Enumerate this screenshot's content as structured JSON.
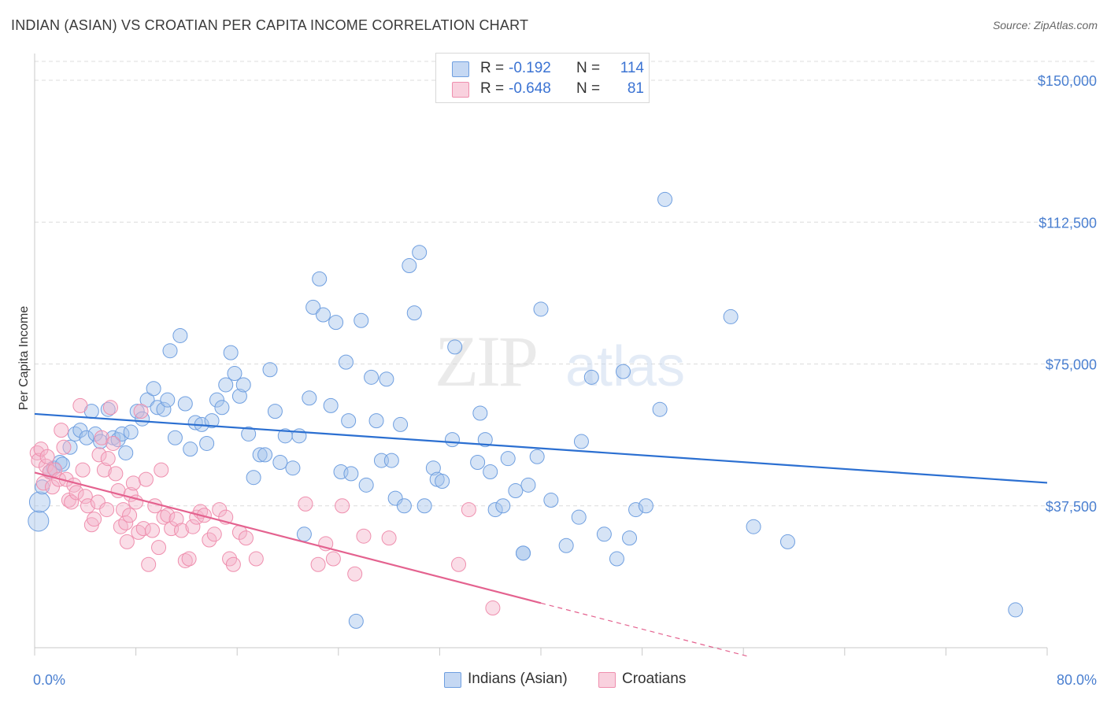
{
  "title": "INDIAN (ASIAN) VS CROATIAN PER CAPITA INCOME CORRELATION CHART",
  "source": "Source: ZipAtlas.com",
  "legend": {
    "rows": [
      {
        "r_label": "R =",
        "r_value": "-0.192",
        "n_label": "N =",
        "n_value": "114",
        "color": "#6f9fe0"
      },
      {
        "r_label": "R =",
        "r_value": "-0.648",
        "n_label": "N =",
        "n_value": "81",
        "color": "#ef8fae"
      }
    ]
  },
  "bottom_legend": [
    {
      "label": "Indians (Asian)",
      "color": "#6f9fe0"
    },
    {
      "label": "Croatians",
      "color": "#ef8fae"
    }
  ],
  "chart_data": {
    "type": "scatter",
    "title": "INDIAN (ASIAN) VS CROATIAN PER CAPITA INCOME CORRELATION CHART",
    "xlabel": "",
    "ylabel": "Per Capita Income",
    "xlim": [
      0,
      80
    ],
    "ylim": [
      0,
      155000
    ],
    "x_tick_labels": [
      "0.0%",
      "80.0%"
    ],
    "y_ticks": [
      37500,
      75000,
      112500,
      150000
    ],
    "y_tick_labels": [
      "$37,500",
      "$75,000",
      "$112,500",
      "$150,000"
    ],
    "grid": true,
    "legend_position": "top-center",
    "watermark": "ZIPatlas",
    "series": [
      {
        "name": "Indians (Asian)",
        "color": "#6f9fe0",
        "trend": {
          "x": [
            0,
            80
          ],
          "y": [
            61800,
            43600
          ]
        },
        "points": [
          [
            0.3,
            33500
          ],
          [
            0.4,
            38500
          ],
          [
            0.6,
            42500
          ],
          [
            1.2,
            46500
          ],
          [
            1.5,
            47500
          ],
          [
            2.0,
            49000
          ],
          [
            2.2,
            48500
          ],
          [
            2.8,
            53000
          ],
          [
            3.2,
            56500
          ],
          [
            3.6,
            57500
          ],
          [
            4.1,
            55500
          ],
          [
            4.5,
            62500
          ],
          [
            4.8,
            56500
          ],
          [
            5.2,
            54500
          ],
          [
            5.8,
            63000
          ],
          [
            6.2,
            55500
          ],
          [
            6.6,
            55000
          ],
          [
            6.9,
            56500
          ],
          [
            7.2,
            51500
          ],
          [
            7.6,
            57000
          ],
          [
            8.1,
            62500
          ],
          [
            8.5,
            60500
          ],
          [
            8.9,
            65500
          ],
          [
            9.4,
            68500
          ],
          [
            9.7,
            63500
          ],
          [
            10.2,
            63000
          ],
          [
            10.5,
            65500
          ],
          [
            10.7,
            78500
          ],
          [
            11.1,
            55500
          ],
          [
            11.5,
            82500
          ],
          [
            11.9,
            64500
          ],
          [
            12.3,
            52500
          ],
          [
            12.7,
            59500
          ],
          [
            13.2,
            59000
          ],
          [
            13.6,
            54000
          ],
          [
            14.0,
            60000
          ],
          [
            14.4,
            65500
          ],
          [
            14.8,
            63500
          ],
          [
            15.1,
            69500
          ],
          [
            15.5,
            78000
          ],
          [
            15.8,
            72500
          ],
          [
            16.2,
            66500
          ],
          [
            16.5,
            69500
          ],
          [
            16.9,
            56500
          ],
          [
            17.3,
            45000
          ],
          [
            17.8,
            51000
          ],
          [
            18.2,
            51000
          ],
          [
            18.6,
            73500
          ],
          [
            19.0,
            62500
          ],
          [
            19.4,
            49000
          ],
          [
            19.8,
            56000
          ],
          [
            20.4,
            47500
          ],
          [
            20.9,
            56000
          ],
          [
            21.3,
            30000
          ],
          [
            21.7,
            66000
          ],
          [
            22.0,
            90000
          ],
          [
            22.5,
            97500
          ],
          [
            22.8,
            88000
          ],
          [
            23.4,
            64000
          ],
          [
            23.8,
            86000
          ],
          [
            24.2,
            46500
          ],
          [
            24.6,
            75500
          ],
          [
            24.8,
            60000
          ],
          [
            25.0,
            46000
          ],
          [
            25.4,
            7000
          ],
          [
            25.8,
            86500
          ],
          [
            26.2,
            43000
          ],
          [
            26.6,
            71500
          ],
          [
            27.0,
            60000
          ],
          [
            27.4,
            49500
          ],
          [
            27.8,
            71000
          ],
          [
            28.2,
            49500
          ],
          [
            28.5,
            39500
          ],
          [
            28.9,
            59000
          ],
          [
            29.2,
            37500
          ],
          [
            29.6,
            101000
          ],
          [
            30.0,
            88500
          ],
          [
            30.4,
            104500
          ],
          [
            30.8,
            37500
          ],
          [
            31.5,
            47500
          ],
          [
            31.8,
            44500
          ],
          [
            32.2,
            44000
          ],
          [
            33.0,
            55000
          ],
          [
            33.2,
            79500
          ],
          [
            35.0,
            49000
          ],
          [
            35.2,
            62000
          ],
          [
            35.6,
            55000
          ],
          [
            36.0,
            46500
          ],
          [
            36.4,
            36500
          ],
          [
            37.0,
            37500
          ],
          [
            37.4,
            50000
          ],
          [
            38.0,
            41500
          ],
          [
            38.6,
            25000
          ],
          [
            39.0,
            43000
          ],
          [
            39.7,
            50500
          ],
          [
            40.0,
            89500
          ],
          [
            40.8,
            39000
          ],
          [
            42.0,
            27000
          ],
          [
            43.0,
            34500
          ],
          [
            43.2,
            54500
          ],
          [
            44.0,
            71500
          ],
          [
            45.0,
            30000
          ],
          [
            46.0,
            23500
          ],
          [
            46.5,
            73000
          ],
          [
            47.0,
            29000
          ],
          [
            47.5,
            36500
          ],
          [
            48.3,
            37500
          ],
          [
            49.4,
            63000
          ],
          [
            49.8,
            118500
          ],
          [
            55.0,
            87500
          ],
          [
            56.8,
            32000
          ],
          [
            59.5,
            28000
          ],
          [
            77.5,
            10000
          ],
          [
            38.6,
            25000
          ]
        ]
      },
      {
        "name": "Croatians",
        "color": "#ef8fae",
        "trend": {
          "x": [
            0,
            40
          ],
          "y": [
            46300,
            11800
          ]
        },
        "trend_dashed": {
          "x": [
            40,
            56.5
          ],
          "y": [
            11800,
            -2400
          ]
        },
        "points": [
          [
            0.2,
            51500
          ],
          [
            0.3,
            49500
          ],
          [
            0.5,
            52500
          ],
          [
            0.7,
            43500
          ],
          [
            0.9,
            48000
          ],
          [
            1.0,
            50500
          ],
          [
            1.2,
            46500
          ],
          [
            1.4,
            42500
          ],
          [
            1.6,
            47000
          ],
          [
            1.9,
            44500
          ],
          [
            2.1,
            57500
          ],
          [
            2.3,
            53000
          ],
          [
            2.5,
            44500
          ],
          [
            2.7,
            39000
          ],
          [
            2.9,
            38500
          ],
          [
            3.1,
            43000
          ],
          [
            3.3,
            41000
          ],
          [
            3.6,
            64000
          ],
          [
            3.8,
            47000
          ],
          [
            4.0,
            40000
          ],
          [
            4.2,
            37500
          ],
          [
            4.5,
            32500
          ],
          [
            4.7,
            34000
          ],
          [
            5.0,
            38500
          ],
          [
            5.1,
            51000
          ],
          [
            5.3,
            55500
          ],
          [
            5.5,
            47000
          ],
          [
            5.7,
            36500
          ],
          [
            5.8,
            50000
          ],
          [
            6.0,
            63500
          ],
          [
            6.2,
            54000
          ],
          [
            6.4,
            46000
          ],
          [
            6.6,
            41500
          ],
          [
            6.8,
            32000
          ],
          [
            7.0,
            36500
          ],
          [
            7.2,
            33000
          ],
          [
            7.3,
            28000
          ],
          [
            7.5,
            35000
          ],
          [
            7.6,
            40500
          ],
          [
            7.8,
            43500
          ],
          [
            8.0,
            38500
          ],
          [
            8.2,
            30500
          ],
          [
            8.4,
            62500
          ],
          [
            8.6,
            31500
          ],
          [
            8.8,
            44500
          ],
          [
            9.0,
            22000
          ],
          [
            9.3,
            31000
          ],
          [
            9.5,
            37500
          ],
          [
            9.8,
            26500
          ],
          [
            10.0,
            47000
          ],
          [
            10.2,
            34500
          ],
          [
            10.5,
            35000
          ],
          [
            10.8,
            31500
          ],
          [
            11.2,
            34000
          ],
          [
            11.6,
            31000
          ],
          [
            11.9,
            23000
          ],
          [
            12.2,
            23500
          ],
          [
            12.5,
            32000
          ],
          [
            12.8,
            34500
          ],
          [
            13.1,
            36000
          ],
          [
            13.4,
            35000
          ],
          [
            13.8,
            28500
          ],
          [
            14.2,
            30000
          ],
          [
            14.6,
            36500
          ],
          [
            15.1,
            34500
          ],
          [
            15.4,
            23500
          ],
          [
            15.7,
            22000
          ],
          [
            16.2,
            30500
          ],
          [
            16.7,
            29000
          ],
          [
            17.5,
            23500
          ],
          [
            21.4,
            38000
          ],
          [
            22.4,
            22000
          ],
          [
            23.0,
            27500
          ],
          [
            23.6,
            23500
          ],
          [
            24.3,
            37500
          ],
          [
            25.3,
            19500
          ],
          [
            26.0,
            29500
          ],
          [
            28.0,
            29000
          ],
          [
            33.5,
            22000
          ],
          [
            34.3,
            36500
          ],
          [
            36.2,
            10500
          ]
        ]
      }
    ]
  }
}
